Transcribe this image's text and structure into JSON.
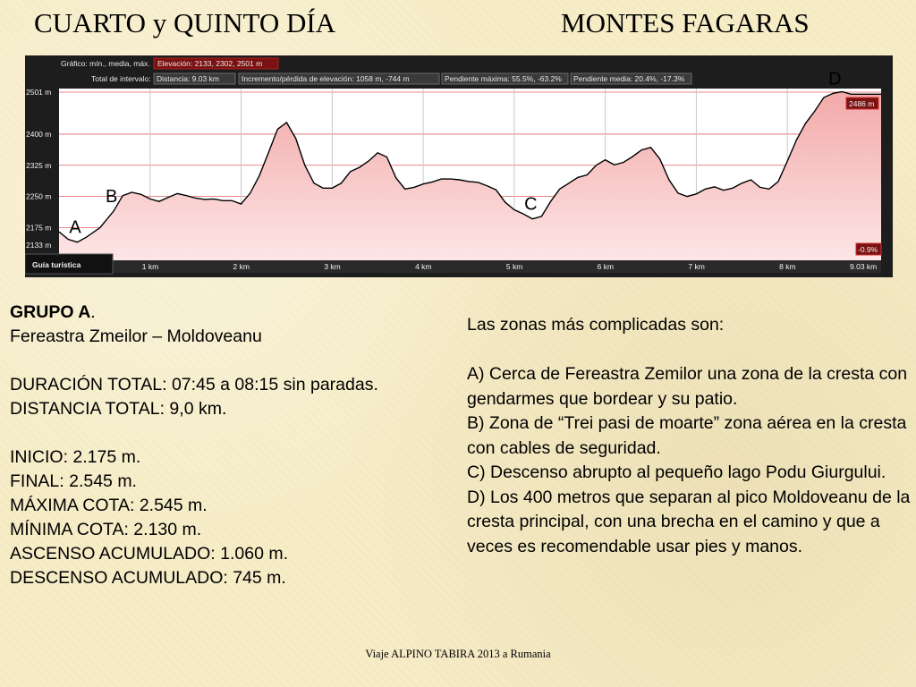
{
  "title_left": "CUARTO y QUINTO DÍA",
  "title_right": "MONTES FAGARAS",
  "chart_header": {
    "row1_label": "Gráfico: mín., media, máx.",
    "row1_value": "Elevación: 2133, 2302, 2501 m",
    "row2_label": "Total de intervalo:",
    "row2_items": [
      "Distancia: 9.03 km",
      "Incremento/pérdida de elevación: 1058 m, -744 m",
      "Pendiente máxima: 55.5%, -63.2%",
      "Pendiente media: 20.4%, -17.3%"
    ]
  },
  "chart_data": {
    "type": "area",
    "y_ticks": [
      {
        "label": "2501 m",
        "value": 2501
      },
      {
        "label": "2400 m",
        "value": 2400
      },
      {
        "label": "2325 m",
        "value": 2325
      },
      {
        "label": "2250 m",
        "value": 2250
      },
      {
        "label": "2175 m",
        "value": 2175
      },
      {
        "label": "2133 m",
        "value": 2133
      }
    ],
    "x_ticks": [
      {
        "label": "1 km",
        "value": 1
      },
      {
        "label": "2 km",
        "value": 2
      },
      {
        "label": "3 km",
        "value": 3
      },
      {
        "label": "4 km",
        "value": 4
      },
      {
        "label": "5 km",
        "value": 5
      },
      {
        "label": "6 km",
        "value": 6
      },
      {
        "label": "7 km",
        "value": 7
      },
      {
        "label": "8 km",
        "value": 8
      },
      {
        "label": "9.03 km",
        "value": 9.03
      }
    ],
    "xlim": [
      0,
      9.03
    ],
    "ylim": [
      2133,
      2501
    ],
    "x": [
      0,
      0.1,
      0.2,
      0.3,
      0.45,
      0.6,
      0.7,
      0.8,
      0.9,
      1.0,
      1.1,
      1.2,
      1.3,
      1.4,
      1.5,
      1.6,
      1.7,
      1.8,
      1.9,
      2.0,
      2.1,
      2.2,
      2.3,
      2.4,
      2.5,
      2.6,
      2.7,
      2.8,
      2.9,
      3.0,
      3.1,
      3.2,
      3.3,
      3.4,
      3.5,
      3.6,
      3.7,
      3.8,
      3.9,
      4.0,
      4.1,
      4.2,
      4.3,
      4.4,
      4.5,
      4.6,
      4.7,
      4.8,
      4.9,
      5.0,
      5.1,
      5.2,
      5.3,
      5.4,
      5.5,
      5.6,
      5.7,
      5.8,
      5.9,
      6.0,
      6.1,
      6.2,
      6.3,
      6.4,
      6.5,
      6.6,
      6.7,
      6.8,
      6.9,
      7.0,
      7.1,
      7.2,
      7.3,
      7.4,
      7.5,
      7.6,
      7.7,
      7.8,
      7.9,
      8.0,
      8.1,
      8.2,
      8.3,
      8.4,
      8.5,
      8.6,
      8.7,
      8.8,
      8.9,
      9.03
    ],
    "y": [
      2165,
      2147,
      2140,
      2152,
      2175,
      2215,
      2252,
      2260,
      2255,
      2244,
      2238,
      2248,
      2257,
      2252,
      2246,
      2243,
      2244,
      2240,
      2240,
      2232,
      2258,
      2300,
      2355,
      2412,
      2428,
      2390,
      2325,
      2282,
      2270,
      2270,
      2282,
      2310,
      2320,
      2335,
      2355,
      2345,
      2295,
      2268,
      2272,
      2280,
      2285,
      2292,
      2292,
      2290,
      2286,
      2284,
      2276,
      2266,
      2236,
      2218,
      2208,
      2196,
      2202,
      2238,
      2268,
      2282,
      2296,
      2302,
      2325,
      2338,
      2326,
      2332,
      2346,
      2362,
      2368,
      2340,
      2290,
      2258,
      2250,
      2256,
      2268,
      2273,
      2265,
      2270,
      2282,
      2290,
      2272,
      2268,
      2286,
      2335,
      2386,
      2426,
      2455,
      2488,
      2498,
      2502,
      2496,
      2496,
      2496,
      2496
    ],
    "markers": [
      {
        "label": "A",
        "x": 0.18
      },
      {
        "label": "B",
        "x": 0.58
      },
      {
        "label": "C",
        "x": 5.18
      },
      {
        "label": "D",
        "x": 8.52
      }
    ],
    "hover_elevation_label": "2486 m",
    "grade_label": "-0.9%",
    "footer_tab": "Guía turística"
  },
  "left_col": {
    "group_title": "GRUPO A",
    "group_title_suffix": ".",
    "route": "Fereastra Zmeilor – Moldoveanu",
    "duration": "DURACIÓN TOTAL: 07:45 a 08:15 sin paradas.",
    "distance": "DISTANCIA TOTAL: 9,0 km.",
    "start": "INICIO: 2.175 m.",
    "end": "FINAL: 2.545 m.",
    "max": "MÁXIMA COTA: 2.545 m.",
    "min": "MÍNIMA COTA: 2.130 m.",
    "ascent": "ASCENSO ACUMULADO: 1.060 m.",
    "descent": "DESCENSO ACUMULADO: 745 m."
  },
  "right_col": {
    "intro": "Las zonas más complicadas son:",
    "items": [
      "A) Cerca de Fereastra Zemilor una zona de la cresta con gendarmes que bordear y su patio.",
      "B) Zona de “Trei pasi de moarte” zona aérea en la cresta con cables de seguridad.",
      "C) Descenso abrupto al pequeño lago Podu Giurgului.",
      "D) Los 400 metros que separan al pico Moldoveanu de la cresta principal, con una brecha en el camino y que a veces es recomendable usar pies y manos."
    ]
  },
  "footer": "Viaje ALPINO TABIRA 2013 a Rumania"
}
